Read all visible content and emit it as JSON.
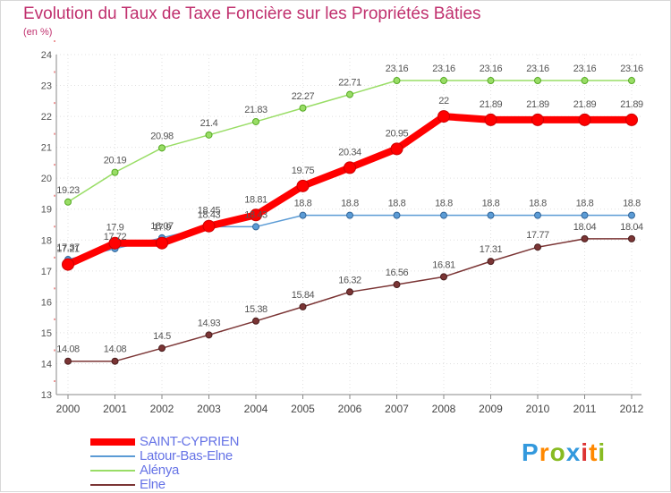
{
  "chart_data": {
    "type": "line",
    "title": "Evolution du Taux de Taxe Foncière sur les Propriétés Bâties",
    "ylabel": "(en %)",
    "xlabel": "",
    "x": [
      "2000",
      "2001",
      "2002",
      "2003",
      "2004",
      "2005",
      "2006",
      "2007",
      "2008",
      "2009",
      "2010",
      "2011",
      "2012"
    ],
    "ylim": [
      13,
      24
    ],
    "yticks": [
      "13",
      "14",
      "15",
      "16",
      "17",
      "18",
      "19",
      "20",
      "21",
      "22",
      "23",
      "24"
    ],
    "grid": "dotted",
    "series": [
      {
        "name": "SAINT-CYPRIEN",
        "color": "#ff0000",
        "values": [
          17.21,
          17.9,
          17.9,
          18.45,
          18.81,
          19.75,
          20.34,
          20.95,
          22,
          21.89,
          21.89,
          21.89,
          21.89
        ],
        "labels": [
          "17.21",
          "17.9",
          "17.9",
          "18.45",
          "18.81",
          "19.75",
          "20.34",
          "20.95",
          "22",
          "21.89",
          "21.89",
          "21.89",
          "21.89"
        ]
      },
      {
        "name": "Latour-Bas-Elne",
        "color": "#5b9bd5",
        "values": [
          17.37,
          17.72,
          18.07,
          18.43,
          18.43,
          18.8,
          18.8,
          18.8,
          18.8,
          18.8,
          18.8,
          18.8,
          18.8
        ],
        "labels": [
          "17.37",
          "17.72",
          "18.07",
          "18.43",
          "18.43",
          "18.8",
          "18.8",
          "18.8",
          "18.8",
          "18.8",
          "18.8",
          "18.8",
          "18.8"
        ]
      },
      {
        "name": "Alénya",
        "color": "#99dd66",
        "values": [
          19.23,
          20.19,
          20.98,
          21.4,
          21.83,
          22.27,
          22.71,
          23.16,
          23.16,
          23.16,
          23.16,
          23.16,
          23.16
        ],
        "labels": [
          "19.23",
          "20.19",
          "20.98",
          "21.4",
          "21.83",
          "22.27",
          "22.71",
          "23.16",
          "23.16",
          "23.16",
          "23.16",
          "23.16",
          "23.16"
        ]
      },
      {
        "name": "Elne",
        "color": "#7b3535",
        "values": [
          14.08,
          14.08,
          14.5,
          14.93,
          15.38,
          15.84,
          16.32,
          16.56,
          16.81,
          17.31,
          17.77,
          18.04,
          18.04
        ],
        "labels": [
          "14.08",
          "14.08",
          "14.5",
          "14.93",
          "15.38",
          "15.84",
          "16.32",
          "16.56",
          "16.81",
          "17.31",
          "17.77",
          "18.04",
          "18.04"
        ]
      }
    ]
  },
  "brand": {
    "letters": [
      "P",
      "r",
      "o",
      "x",
      "i",
      "t",
      "i"
    ],
    "colors": [
      "#3399dd",
      "#ff8800",
      "#88bb22",
      "#3399dd",
      "#dd3333",
      "#ff8800",
      "#88bb22"
    ]
  }
}
